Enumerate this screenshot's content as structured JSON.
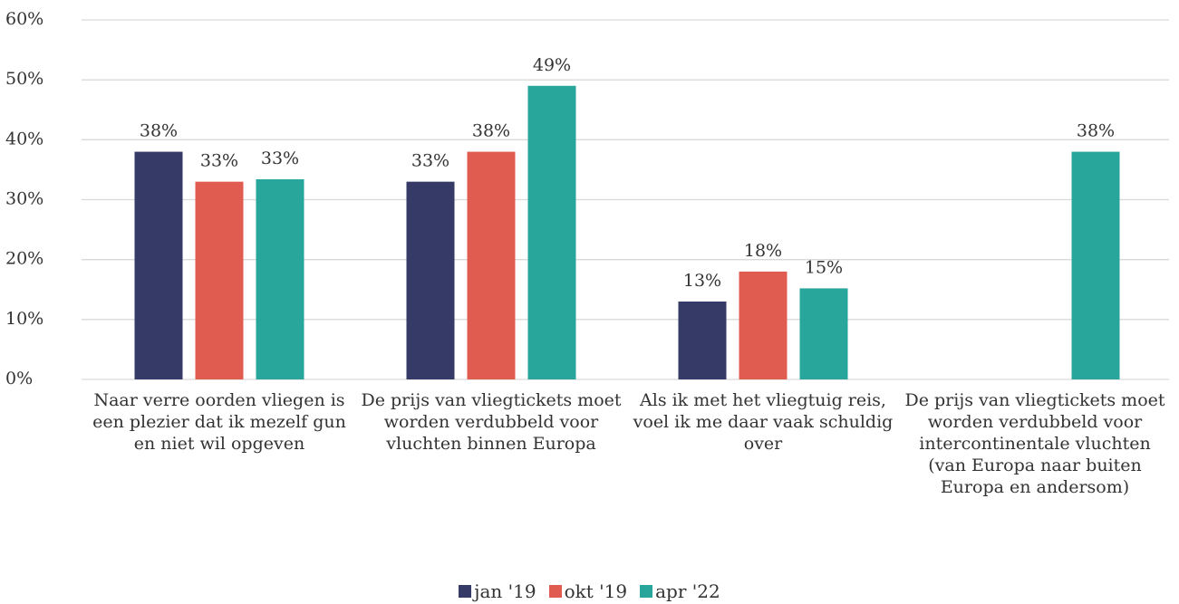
{
  "chart_data": {
    "type": "bar",
    "categories": [
      "Naar verre oorden vliegen is een plezier dat ik mezelf gun en niet wil opgeven",
      "De prijs van vliegtickets moet worden verdubbeld voor vluchten binnen Europa",
      "Als ik met het vliegtuig reis, voel ik me daar vaak schuldig over",
      "De prijs van vliegtickets moet worden verdubbeld voor intercontinentale vluchten (van Europa naar buiten Europa en andersom)"
    ],
    "series": [
      {
        "name": "jan '19",
        "color": "#363a66",
        "values": [
          38,
          33,
          13,
          null
        ],
        "value_labels": [
          "38%",
          "33%",
          "13%",
          null
        ]
      },
      {
        "name": "okt '19",
        "color": "#e05c50",
        "values": [
          33,
          38,
          18,
          null
        ],
        "value_labels": [
          "33%",
          "38%",
          "18%",
          null
        ]
      },
      {
        "name": "apr '22",
        "color": "#29a69b",
        "values": [
          33.4,
          49,
          15.2,
          38
        ],
        "value_labels": [
          "33%",
          "49%",
          "15%",
          "38%"
        ]
      }
    ],
    "ylim": [
      0,
      60
    ],
    "yticks": [
      {
        "value": 0,
        "label": "0%"
      },
      {
        "value": 10,
        "label": "10%"
      },
      {
        "value": 20,
        "label": "20%"
      },
      {
        "value": 30,
        "label": "30%"
      },
      {
        "value": 40,
        "label": "40%"
      },
      {
        "value": 50,
        "label": "50%"
      },
      {
        "value": 60,
        "label": "60%"
      }
    ],
    "grid": true,
    "legend": "bottom"
  }
}
